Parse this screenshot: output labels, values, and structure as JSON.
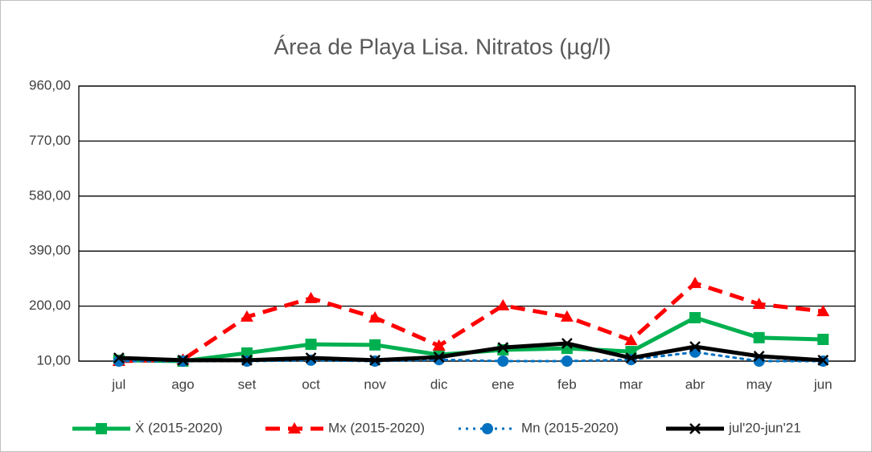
{
  "chart_data": {
    "type": "line",
    "title": "Área de Playa Lisa. Nitratos (µg/l)",
    "categories": [
      "jul",
      "ago",
      "set",
      "oct",
      "nov",
      "dic",
      "ene",
      "feb",
      "mar",
      "abr",
      "may",
      "jun"
    ],
    "ylim": [
      10,
      960
    ],
    "yticks": [
      {
        "value": 10,
        "label": "10,00"
      },
      {
        "value": 200,
        "label": "200,00"
      },
      {
        "value": 390,
        "label": "390,00"
      },
      {
        "value": 580,
        "label": "580,00"
      },
      {
        "value": 770,
        "label": "770,00"
      },
      {
        "value": 960,
        "label": "960,00"
      }
    ],
    "grid": true,
    "legend": "bottom",
    "series": [
      {
        "name": "Ẋ (2015-2020)",
        "color": "#00b050",
        "marker": "square",
        "dash": "solid",
        "values": [
          13,
          10,
          38,
          68,
          66,
          32,
          49,
          54,
          43,
          160,
          91,
          85
        ]
      },
      {
        "name": "Mx (2015-2020)",
        "color": "#ff0000",
        "marker": "triangle",
        "dash": "dashed",
        "values": [
          10,
          15,
          163,
          227,
          160,
          63,
          202,
          163,
          82,
          279,
          207,
          182
        ]
      },
      {
        "name": "Mn (2015-2020)",
        "color": "#0070c0",
        "marker": "circle",
        "dash": "dotted",
        "values": [
          10,
          10,
          10,
          13,
          10,
          15,
          10,
          10,
          15,
          41,
          10,
          10
        ]
      },
      {
        "name": "jul'20-jun'21",
        "color": "#000000",
        "marker": "x",
        "dash": "solid",
        "values": [
          21,
          13,
          13,
          21,
          13,
          24,
          57,
          71,
          21,
          60,
          27,
          13
        ]
      }
    ]
  }
}
